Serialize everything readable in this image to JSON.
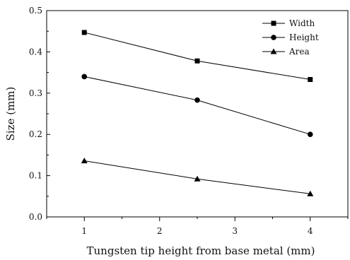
{
  "chart_data": {
    "type": "line",
    "x": [
      1,
      2.5,
      4
    ],
    "xlabel": "Tungsten tip height from base metal (mm)",
    "ylabel": "Size  (mm)",
    "xlim": [
      0.5,
      4.5
    ],
    "ylim": [
      0.0,
      0.5
    ],
    "xticks": [
      "1",
      "2",
      "3",
      "4"
    ],
    "yticks": [
      "0.0",
      "0.1",
      "0.2",
      "0.3",
      "0.4",
      "0.5"
    ],
    "grid": false,
    "legend_position": "top-right",
    "series": [
      {
        "name": "Width",
        "marker": "square",
        "values": [
          0.447,
          0.378,
          0.333
        ]
      },
      {
        "name": "Height",
        "marker": "circle",
        "values": [
          0.34,
          0.283,
          0.2
        ]
      },
      {
        "name": "Area",
        "marker": "triangle",
        "values": [
          0.136,
          0.092,
          0.056
        ]
      }
    ]
  }
}
